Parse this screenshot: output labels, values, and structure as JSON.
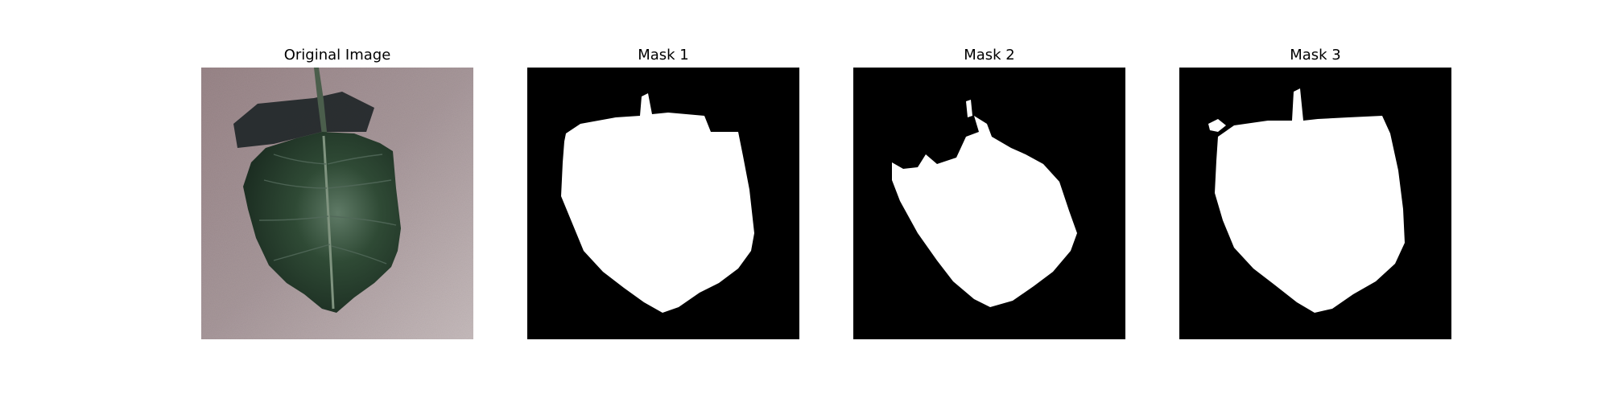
{
  "figure": {
    "panels": [
      {
        "title": "Original Image",
        "kind": "photo"
      },
      {
        "title": "Mask 1",
        "kind": "mask"
      },
      {
        "title": "Mask 2",
        "kind": "mask"
      },
      {
        "title": "Mask 3",
        "kind": "mask"
      }
    ]
  },
  "colors": {
    "background": "#ffffff",
    "mask_foreground": "#ffffff",
    "mask_background": "#000000",
    "photo_surface": "#a89496",
    "leaf": "#2f4a35",
    "leaf_shadow": "#1f2628"
  }
}
